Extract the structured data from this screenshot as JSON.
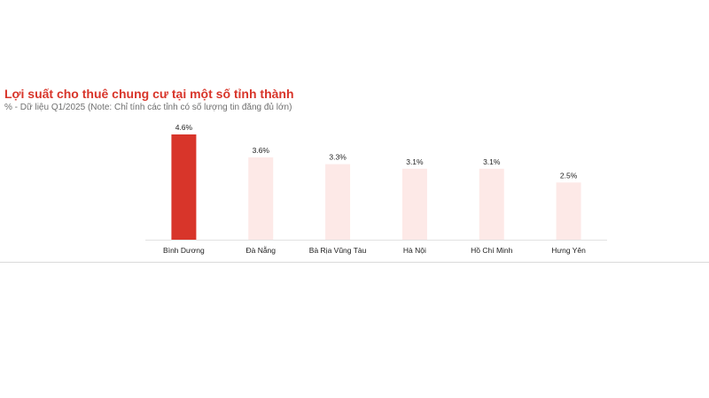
{
  "chart_data": {
    "type": "bar",
    "title": "Lợi suất cho thuê chung cư tại một số tỉnh thành",
    "subtitle": "% - Dữ liệu Q1/2025 (Note: Chỉ tính các tỉnh có số lượng tin đăng đủ lớn)",
    "xlabel": "",
    "ylabel": "",
    "categories": [
      "Bình Dương",
      "Đà Nẵng",
      "Bà Rịa Vũng Tàu",
      "Hà Nội",
      "Hồ Chí Minh",
      "Hưng Yên"
    ],
    "values": [
      4.6,
      3.6,
      3.3,
      3.1,
      3.1,
      2.5
    ],
    "data_labels": [
      "4.6%",
      "3.6%",
      "3.3%",
      "3.1%",
      "3.1%",
      "2.5%"
    ],
    "ylim": [
      0,
      4.6
    ],
    "highlight_index": 0,
    "grid": false,
    "legend": "none",
    "colors": {
      "highlight": "#d8352a",
      "other": "#fde9e7",
      "title": "#d8352a",
      "axis": "#e2e2e2"
    }
  }
}
